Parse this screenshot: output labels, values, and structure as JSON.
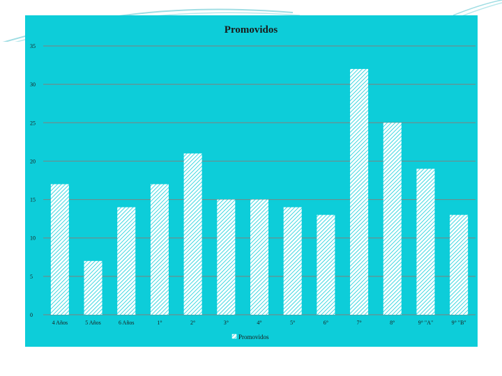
{
  "colors": {
    "panel": "#0dcdd9",
    "gridline": "#6c8e8e",
    "bar_fill": "#ffffff",
    "bar_hatch": "#0dcdd9",
    "text": "#1a1a1a",
    "deco": "#9fdde3"
  },
  "chart_data": {
    "type": "bar",
    "title": "Promovidos",
    "xlabel": "",
    "ylabel": "",
    "ylim": [
      0,
      35
    ],
    "yticks": [
      0,
      5,
      10,
      15,
      20,
      25,
      30,
      35
    ],
    "grid": true,
    "legend_position": "bottom-center",
    "categories": [
      "4 Años",
      "5 Años",
      "6 Años",
      "1°",
      "2°",
      "3°",
      "4°",
      "5°",
      "6°",
      "7°",
      "8°",
      "9° \"A\"",
      "9° \"B\""
    ],
    "series": [
      {
        "name": "Promovidos",
        "values": [
          17,
          7,
          14,
          17,
          21,
          15,
          15,
          14,
          13,
          32,
          25,
          19,
          13
        ]
      }
    ]
  }
}
